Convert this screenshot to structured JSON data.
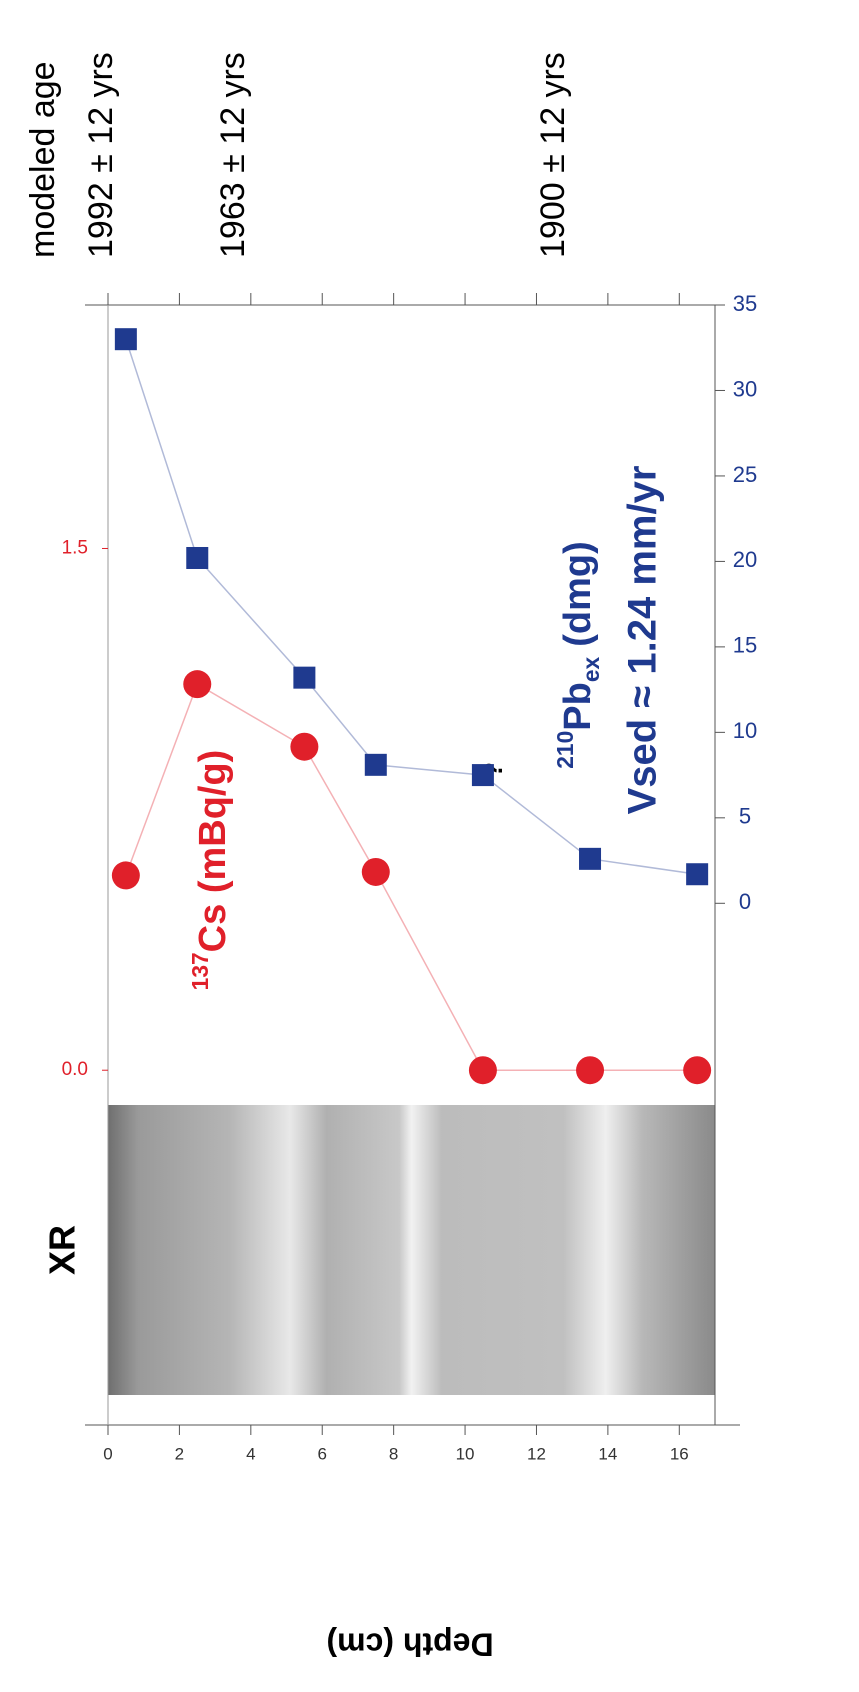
{
  "chart_data": {
    "type": "line",
    "x_label": "Depth (cm)",
    "x": [
      0.5,
      2.5,
      5.5,
      7.5,
      10.5,
      13.5,
      16.5
    ],
    "xlim": [
      0,
      17
    ],
    "xticks": [
      0,
      2,
      4,
      6,
      8,
      10,
      12,
      14,
      16
    ],
    "series": [
      {
        "name": "Cs (mBq/g)",
        "name_sup": "137",
        "color": "#e0202a",
        "marker": "circle",
        "values": [
          0.56,
          1.11,
          0.93,
          0.57,
          0,
          0,
          0
        ]
      },
      {
        "name": "Pb",
        "name_sup": "210",
        "name_sub": "ex",
        "name_suffix": "(dmg)",
        "color": "#1f3a8f",
        "marker": "square",
        "axis": "y2",
        "values": [
          33.0,
          20.2,
          13.2,
          8.1,
          7.5,
          2.6,
          1.7
        ]
      }
    ],
    "ylim": [
      -0.1,
      2.2
    ],
    "yticks": [
      {
        "value": 0,
        "label": "0.0"
      },
      1.5
    ],
    "y2lim": [
      -11.8,
      35
    ],
    "y2ticks": [
      0,
      5,
      10,
      15,
      20,
      25,
      30,
      35
    ],
    "top_axis": {
      "title": "modeled age",
      "labels": [
        "1992 ± 12 yrs",
        "1963 ± 12 yrs",
        "1900 ± 12 yrs"
      ]
    },
    "annotations": [
      "Vsed ≈ 1.24 mm/yr",
      "?"
    ],
    "panel_label": "XR"
  }
}
